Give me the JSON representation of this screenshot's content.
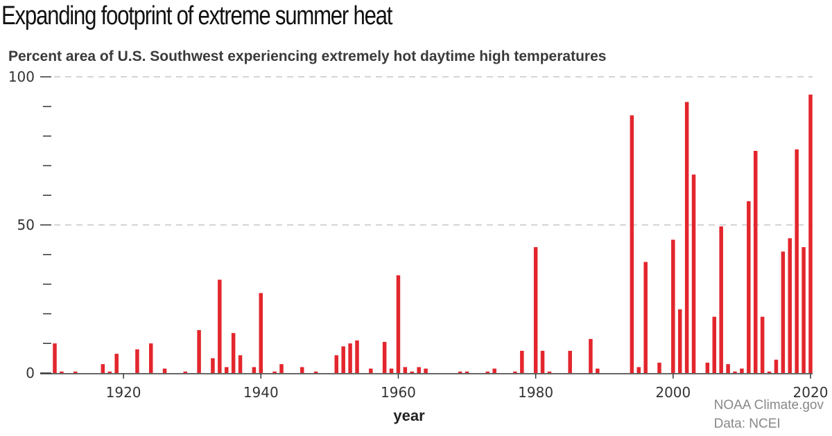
{
  "header": {
    "title": "Expanding footprint of extreme summer heat",
    "subtitle": "Percent area of U.S. Southwest experiencing extremely hot daytime high temperatures"
  },
  "credit": {
    "line1": "NOAA Climate.gov",
    "line2": "Data: NCEI"
  },
  "colors": {
    "bar": "#e3262d",
    "grid": "#bbbbbb",
    "axis": "#333333"
  },
  "chart_data": {
    "type": "bar",
    "title": "Expanding footprint of extreme summer heat",
    "subtitle": "Percent area of U.S. Southwest experiencing extremely hot daytime high temperatures",
    "xlabel": "year",
    "ylabel": "",
    "xlim": [
      1910,
      2020
    ],
    "ylim": [
      0,
      100
    ],
    "x_ticks": [
      1920,
      1940,
      1960,
      1980,
      2000,
      2020
    ],
    "y_ticks": [
      0,
      50,
      100
    ],
    "grid": "horizontal dashed at 50 and 100",
    "x": [
      1910,
      1911,
      1913,
      1917,
      1918,
      1919,
      1922,
      1924,
      1926,
      1929,
      1931,
      1933,
      1934,
      1935,
      1936,
      1937,
      1939,
      1940,
      1942,
      1943,
      1946,
      1948,
      1951,
      1952,
      1953,
      1954,
      1956,
      1958,
      1959,
      1960,
      1961,
      1962,
      1963,
      1964,
      1969,
      1970,
      1973,
      1974,
      1977,
      1978,
      1980,
      1981,
      1982,
      1985,
      1988,
      1989,
      1994,
      1995,
      1996,
      1998,
      2000,
      2001,
      2002,
      2003,
      2005,
      2006,
      2007,
      2008,
      2009,
      2010,
      2011,
      2012,
      2013,
      2014,
      2015,
      2016,
      2017,
      2018,
      2019,
      2020
    ],
    "values": [
      10,
      0.5,
      0.5,
      3,
      0.5,
      6.5,
      8,
      10,
      1.5,
      0.5,
      14.5,
      5,
      31.5,
      2,
      13.5,
      6,
      2,
      27,
      0.5,
      3,
      2,
      0.5,
      6,
      9,
      10,
      11,
      1.5,
      10.5,
      1.5,
      33,
      2,
      0.5,
      2,
      1.5,
      0.5,
      0.5,
      0.5,
      1.5,
      0.5,
      7.5,
      42.5,
      7.5,
      0.5,
      7.5,
      11.5,
      1.5,
      87,
      2,
      37.5,
      3.5,
      45,
      21.5,
      91.5,
      67,
      3.5,
      19,
      49.5,
      3,
      0.5,
      1.5,
      58,
      75,
      19,
      0.5,
      4.5,
      41,
      45.5,
      75.5,
      42.5,
      94
    ]
  }
}
